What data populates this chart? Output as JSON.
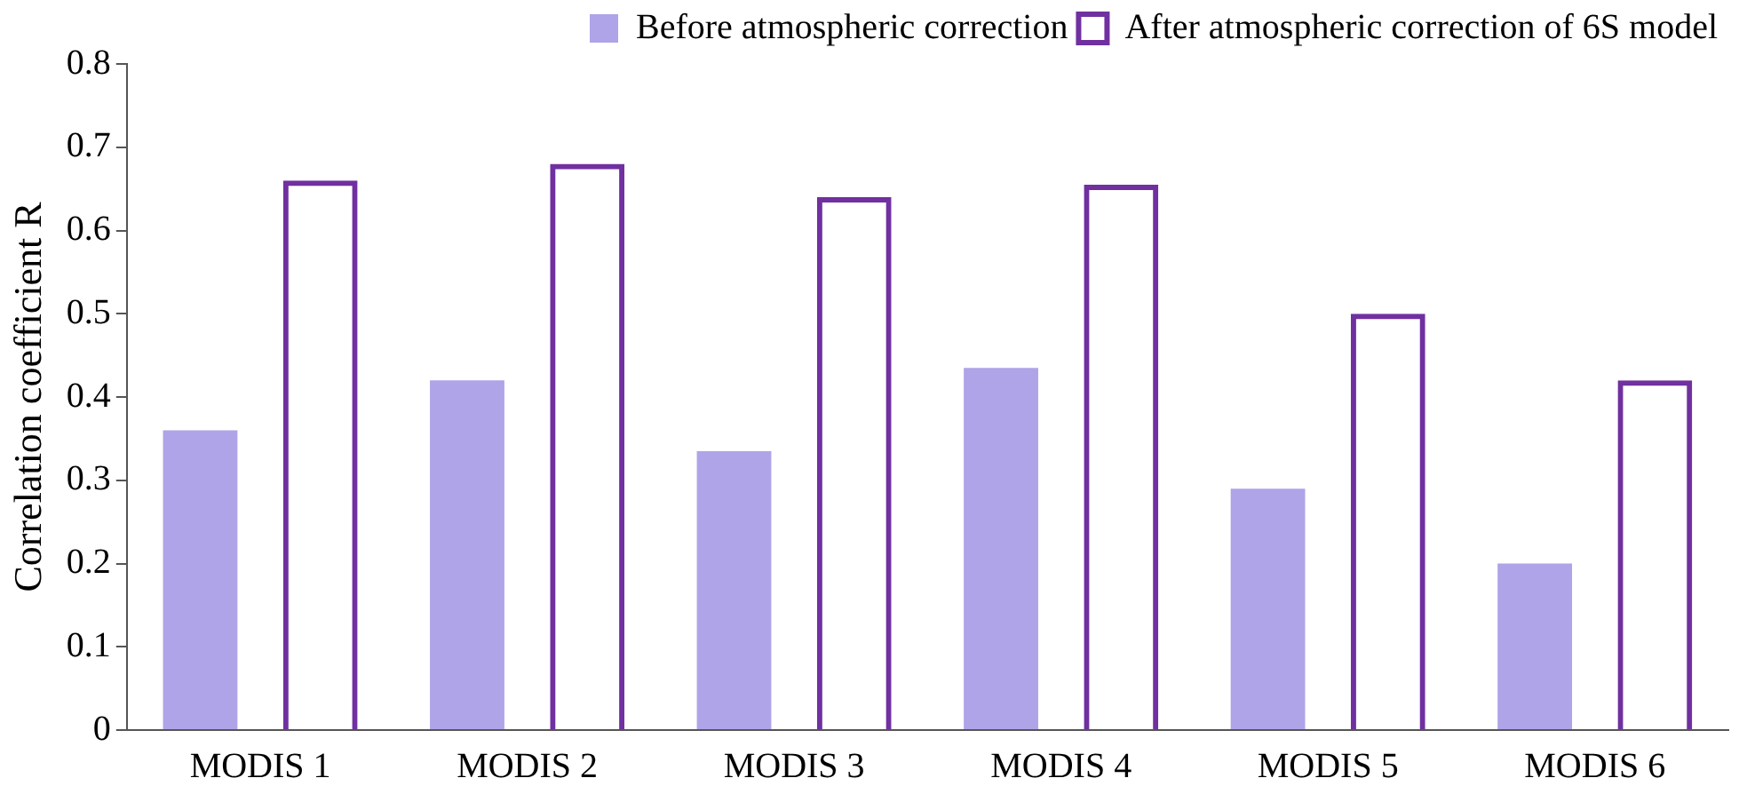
{
  "chart_data": {
    "type": "bar",
    "ylabel": "Correlation coefficient R",
    "categories": [
      "MODIS 1",
      "MODIS 2",
      "MODIS 3",
      "MODIS 4",
      "MODIS 5",
      "MODIS 6"
    ],
    "series": [
      {
        "name": "Before atmospheric correction",
        "color": "#afa4e8",
        "values": [
          0.36,
          0.42,
          0.335,
          0.435,
          0.29,
          0.2
        ]
      },
      {
        "name": "After atmospheric correction of 6S model",
        "color": "#7030a0",
        "values": [
          0.66,
          0.68,
          0.64,
          0.655,
          0.5,
          0.42
        ]
      }
    ],
    "ylim": [
      0,
      0.8
    ],
    "yticks": [
      0,
      0.1,
      0.2,
      0.3,
      0.4,
      0.5,
      0.6,
      0.7,
      0.8
    ],
    "grid": false,
    "legend": "top right"
  }
}
